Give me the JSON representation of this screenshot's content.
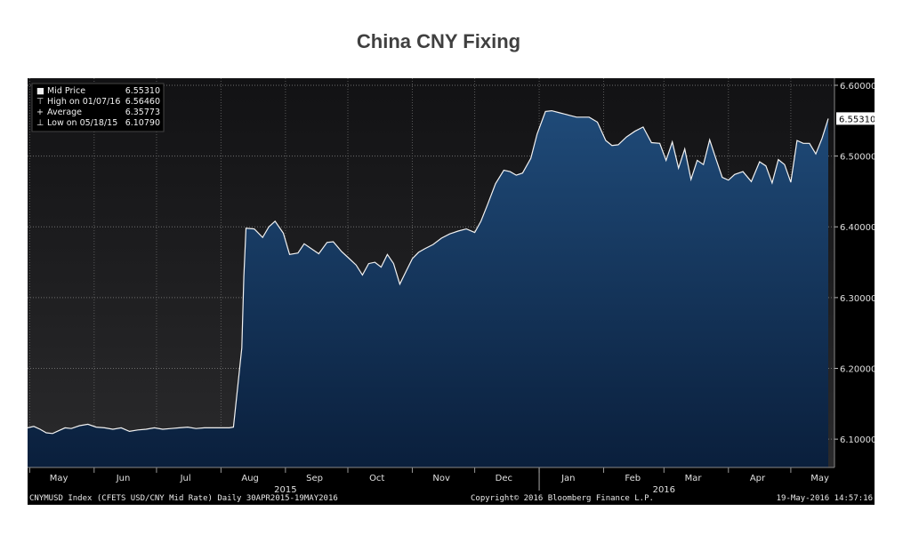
{
  "chart_data": {
    "type": "area",
    "title": "China CNY Fixing",
    "ylim": [
      6.06,
      6.61
    ],
    "yticks": [
      "6.10000",
      "6.20000",
      "6.30000",
      "6.40000",
      "6.50000",
      "6.60000"
    ],
    "months": [
      {
        "label": "May",
        "date": "2015-05-15"
      },
      {
        "label": "Jun",
        "date": "2015-06-15"
      },
      {
        "label": "Jul",
        "date": "2015-07-15"
      },
      {
        "label": "Aug",
        "date": "2015-08-15"
      },
      {
        "label": "Sep",
        "date": "2015-09-15"
      },
      {
        "label": "Oct",
        "date": "2015-10-15"
      },
      {
        "label": "Nov",
        "date": "2015-11-15"
      },
      {
        "label": "Dec",
        "date": "2015-12-15"
      },
      {
        "label": "Jan",
        "date": "2016-01-15"
      },
      {
        "label": "Feb",
        "date": "2016-02-15"
      },
      {
        "label": "Mar",
        "date": "2016-03-15"
      },
      {
        "label": "Apr",
        "date": "2016-04-15"
      },
      {
        "label": "May",
        "date": "2016-05-15"
      }
    ],
    "years": [
      {
        "label": "2015",
        "date": "2015-09-01"
      },
      {
        "label": "2016",
        "date": "2016-03-01"
      }
    ],
    "xrange": [
      "2015-04-30",
      "2016-05-22"
    ],
    "legend": [
      {
        "label": "Mid Price",
        "value": "6.55310"
      },
      {
        "label": "High on 01/07/16",
        "value": "6.56460"
      },
      {
        "label": "Average",
        "value": "6.35773"
      },
      {
        "label": "Low on 05/18/15",
        "value": "6.10790"
      }
    ],
    "last_value_label": "6.55310",
    "series": [
      {
        "x": [
          "2015-04-30",
          "2015-05-03",
          "2015-05-06",
          "2015-05-09",
          "2015-05-12",
          "2015-05-15",
          "2015-05-18",
          "2015-05-21",
          "2015-05-25",
          "2015-05-29",
          "2015-06-02",
          "2015-06-06",
          "2015-06-10",
          "2015-06-14",
          "2015-06-18",
          "2015-06-22",
          "2015-06-26",
          "2015-06-30",
          "2015-07-04",
          "2015-07-08",
          "2015-07-12",
          "2015-07-16",
          "2015-07-20",
          "2015-07-24",
          "2015-07-28",
          "2015-08-01",
          "2015-08-05",
          "2015-08-07",
          "2015-08-11",
          "2015-08-12",
          "2015-08-13",
          "2015-08-17",
          "2015-08-21",
          "2015-08-24",
          "2015-08-27",
          "2015-08-31",
          "2015-09-03",
          "2015-09-07",
          "2015-09-10",
          "2015-09-14",
          "2015-09-17",
          "2015-09-21",
          "2015-09-24",
          "2015-09-28",
          "2015-10-01",
          "2015-10-05",
          "2015-10-08",
          "2015-10-11",
          "2015-10-14",
          "2015-10-17",
          "2015-10-20",
          "2015-10-23",
          "2015-10-26",
          "2015-10-29",
          "2015-11-01",
          "2015-11-04",
          "2015-11-07",
          "2015-11-11",
          "2015-11-15",
          "2015-11-19",
          "2015-11-23",
          "2015-11-27",
          "2015-12-01",
          "2015-12-04",
          "2015-12-07",
          "2015-12-11",
          "2015-12-15",
          "2015-12-18",
          "2015-12-21",
          "2015-12-24",
          "2015-12-28",
          "2015-12-31",
          "2016-01-04",
          "2016-01-07",
          "2016-01-11",
          "2016-01-15",
          "2016-01-19",
          "2016-01-25",
          "2016-01-29",
          "2016-02-02",
          "2016-02-05",
          "2016-02-08",
          "2016-02-12",
          "2016-02-16",
          "2016-02-20",
          "2016-02-24",
          "2016-02-28",
          "2016-03-02",
          "2016-03-05",
          "2016-03-08",
          "2016-03-11",
          "2016-03-14",
          "2016-03-17",
          "2016-03-20",
          "2016-03-23",
          "2016-03-26",
          "2016-03-29",
          "2016-04-01",
          "2016-04-04",
          "2016-04-08",
          "2016-04-12",
          "2016-04-16",
          "2016-04-19",
          "2016-04-22",
          "2016-04-25",
          "2016-04-28",
          "2016-05-01",
          "2016-05-04",
          "2016-05-07",
          "2016-05-10",
          "2016-05-13",
          "2016-05-16",
          "2016-05-19"
        ],
        "y": [
          6.116,
          6.118,
          6.114,
          6.109,
          6.108,
          6.112,
          6.116,
          6.115,
          6.119,
          6.121,
          6.117,
          6.116,
          6.114,
          6.116,
          6.111,
          6.113,
          6.114,
          6.116,
          6.114,
          6.115,
          6.116,
          6.117,
          6.115,
          6.116,
          6.116,
          6.116,
          6.116,
          6.117,
          6.229,
          6.33,
          6.398,
          6.397,
          6.385,
          6.4,
          6.408,
          6.391,
          6.361,
          6.363,
          6.376,
          6.368,
          6.362,
          6.378,
          6.379,
          6.365,
          6.357,
          6.346,
          6.332,
          6.348,
          6.35,
          6.343,
          6.361,
          6.348,
          6.319,
          6.337,
          6.355,
          6.364,
          6.369,
          6.375,
          6.384,
          6.39,
          6.394,
          6.397,
          6.392,
          6.408,
          6.43,
          6.461,
          6.48,
          6.478,
          6.473,
          6.476,
          6.497,
          6.531,
          6.563,
          6.564,
          6.561,
          6.558,
          6.555,
          6.555,
          6.548,
          6.522,
          6.515,
          6.516,
          6.527,
          6.535,
          6.541,
          6.519,
          6.518,
          6.494,
          6.52,
          6.483,
          6.51,
          6.467,
          6.494,
          6.488,
          6.523,
          6.496,
          6.47,
          6.466,
          6.474,
          6.478,
          6.464,
          6.492,
          6.486,
          6.462,
          6.495,
          6.488,
          6.463,
          6.522,
          6.518,
          6.518,
          6.503,
          6.525,
          6.553
        ]
      }
    ]
  },
  "footer": {
    "left": "CNYMUSD Index (CFETS USD/CNY Mid Rate)  Daily 30APR2015-19MAY2016",
    "center": "Copyright© 2016 Bloomberg Finance L.P.",
    "right": "19-May-2016 14:57:16"
  }
}
